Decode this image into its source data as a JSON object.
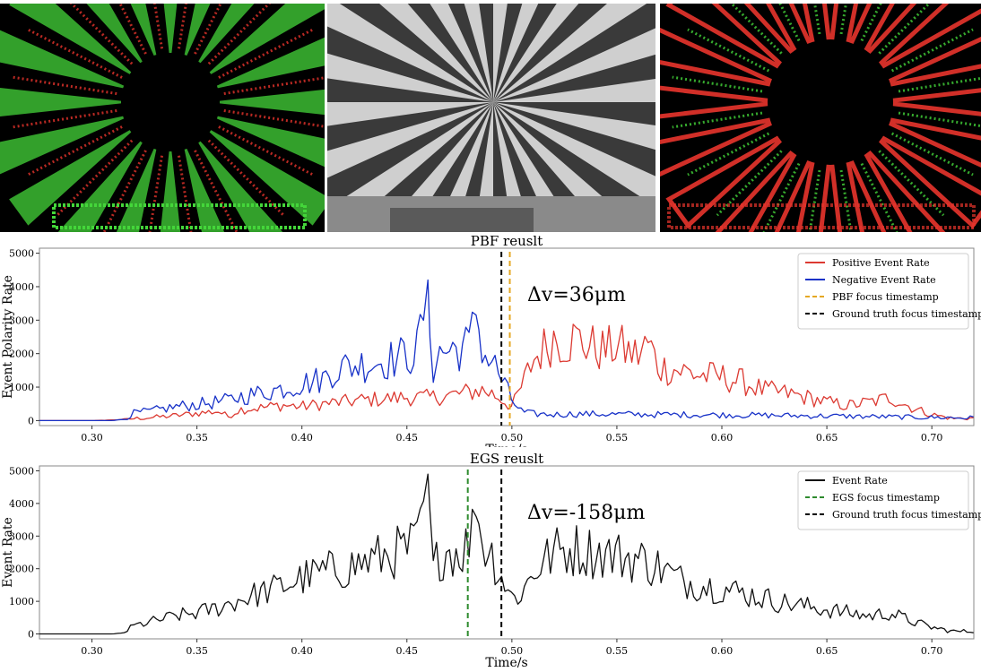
{
  "colors": {
    "positive": "#dc3a32",
    "negative": "#1832c8",
    "pbf_focus": "#e5a823",
    "egs_focus": "#2e8b2e",
    "ground_truth": "#000000",
    "event_rate": "#111111",
    "event_green": "#44d63a",
    "event_red": "#e8342c"
  },
  "images": {
    "left": "event-frame-starburst",
    "middle": "grayscale-siemens-star-photo",
    "right": "event-frame-starburst-red"
  },
  "chart_data": [
    {
      "type": "line",
      "title": "PBF reuslt",
      "xlabel": "Time/s",
      "ylabel": "Event Polarity Rate",
      "xlim": [
        0.275,
        0.72
      ],
      "ylim": [
        -150,
        5150
      ],
      "xticks": [
        "0.30",
        "0.35",
        "0.40",
        "0.45",
        "0.50",
        "0.55",
        "0.60",
        "0.65",
        "0.70"
      ],
      "yticks": [
        "0",
        "1000",
        "2000",
        "3000",
        "4000",
        "5000"
      ],
      "legend_position": "top-right",
      "annotation": "Δv=36μm",
      "vlines": [
        {
          "name": "PBF focus timestamp",
          "x": 0.499,
          "style": "dashed",
          "color_key": "pbf_focus"
        },
        {
          "name": "Ground truth focus timestamp",
          "x": 0.495,
          "style": "dashed",
          "color_key": "ground_truth"
        }
      ],
      "series": [
        {
          "name": "Positive Event Rate",
          "color_key": "positive",
          "x": [
            0.275,
            0.3,
            0.31,
            0.32,
            0.33,
            0.34,
            0.35,
            0.36,
            0.365,
            0.37,
            0.38,
            0.39,
            0.4,
            0.41,
            0.42,
            0.43,
            0.44,
            0.45,
            0.46,
            0.47,
            0.48,
            0.485,
            0.49,
            0.495,
            0.5,
            0.505,
            0.51,
            0.515,
            0.52,
            0.525,
            0.53,
            0.535,
            0.54,
            0.545,
            0.55,
            0.555,
            0.56,
            0.565,
            0.57,
            0.58,
            0.59,
            0.6,
            0.61,
            0.62,
            0.63,
            0.64,
            0.65,
            0.66,
            0.67,
            0.675,
            0.68,
            0.69,
            0.7,
            0.71,
            0.72
          ],
          "y": [
            0,
            0,
            20,
            60,
            100,
            150,
            220,
            280,
            120,
            330,
            380,
            460,
            420,
            500,
            560,
            620,
            650,
            700,
            680,
            750,
            850,
            920,
            820,
            650,
            400,
            1050,
            1800,
            2150,
            2500,
            2350,
            2450,
            2300,
            2150,
            2100,
            2250,
            2050,
            1950,
            2300,
            1600,
            1500,
            1350,
            1300,
            1150,
            900,
            820,
            700,
            550,
            450,
            550,
            600,
            700,
            400,
            180,
            60,
            80
          ]
        },
        {
          "name": "Negative Event Rate",
          "color_key": "negative",
          "x": [
            0.275,
            0.31,
            0.315,
            0.32,
            0.33,
            0.34,
            0.35,
            0.36,
            0.365,
            0.37,
            0.38,
            0.39,
            0.4,
            0.41,
            0.415,
            0.42,
            0.43,
            0.44,
            0.45,
            0.455,
            0.46,
            0.462,
            0.465,
            0.47,
            0.48,
            0.483,
            0.487,
            0.49,
            0.495,
            0.5,
            0.505,
            0.51,
            0.52,
            0.53,
            0.55,
            0.57,
            0.6,
            0.63,
            0.66,
            0.69,
            0.72
          ],
          "y": [
            0,
            0,
            40,
            220,
            300,
            420,
            480,
            560,
            600,
            700,
            820,
            950,
            1100,
            1250,
            1500,
            1600,
            1700,
            1800,
            1950,
            2100,
            4200,
            1500,
            2000,
            2100,
            2250,
            3150,
            1900,
            1850,
            1250,
            600,
            250,
            200,
            180,
            200,
            190,
            180,
            170,
            150,
            130,
            100,
            80
          ]
        }
      ]
    },
    {
      "type": "line",
      "title": "EGS reuslt",
      "xlabel": "Time/s",
      "ylabel": "Event Rate",
      "xlim": [
        0.275,
        0.72
      ],
      "ylim": [
        -150,
        5150
      ],
      "xticks": [
        "0.30",
        "0.35",
        "0.40",
        "0.45",
        "0.50",
        "0.55",
        "0.60",
        "0.65",
        "0.70"
      ],
      "yticks": [
        "0",
        "1000",
        "2000",
        "3000",
        "4000",
        "5000"
      ],
      "legend_position": "top-right",
      "annotation": "Δv=-158μm",
      "vlines": [
        {
          "name": "EGS focus timestamp",
          "x": 0.479,
          "style": "dashed",
          "color_key": "egs_focus"
        },
        {
          "name": "Ground truth focus timestamp",
          "x": 0.495,
          "style": "dashed",
          "color_key": "ground_truth"
        }
      ],
      "series": [
        {
          "name": "Event Rate",
          "color_key": "event_rate",
          "x": [
            0.275,
            0.31,
            0.315,
            0.32,
            0.33,
            0.34,
            0.35,
            0.36,
            0.37,
            0.38,
            0.39,
            0.4,
            0.41,
            0.42,
            0.43,
            0.44,
            0.45,
            0.455,
            0.46,
            0.462,
            0.465,
            0.47,
            0.475,
            0.48,
            0.483,
            0.487,
            0.49,
            0.495,
            0.5,
            0.505,
            0.51,
            0.52,
            0.53,
            0.54,
            0.55,
            0.56,
            0.57,
            0.58,
            0.59,
            0.6,
            0.61,
            0.62,
            0.63,
            0.64,
            0.65,
            0.66,
            0.67,
            0.68,
            0.69,
            0.7,
            0.71,
            0.72
          ],
          "y": [
            0,
            0,
            30,
            250,
            400,
            550,
            650,
            800,
            1050,
            1250,
            1450,
            1700,
            1900,
            2000,
            2200,
            2400,
            2600,
            2750,
            4900,
            1800,
            2400,
            2600,
            2500,
            2800,
            3600,
            2700,
            2500,
            1800,
            1100,
            1250,
            1900,
            2500,
            2600,
            2500,
            2400,
            2300,
            2050,
            1650,
            1500,
            1400,
            1250,
            1100,
            950,
            850,
            750,
            650,
            550,
            650,
            400,
            200,
            80,
            80
          ]
        }
      ]
    }
  ]
}
